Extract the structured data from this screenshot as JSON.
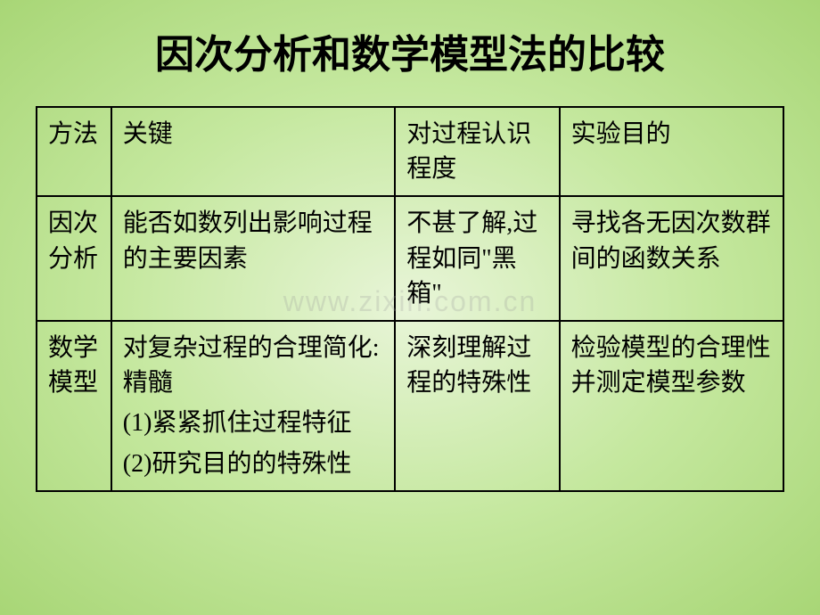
{
  "title": "因次分析和数学模型法的比较",
  "watermark": "www.zixin.com.cn",
  "table": {
    "header": {
      "method": "方法",
      "key": "关键",
      "understanding": "对过程认识程度",
      "purpose": "实验目的"
    },
    "row1": {
      "method": "因次分析",
      "key": "能否如数列出影响过程的主要因素",
      "understanding": "不甚了解,过程如同\"黑箱\"",
      "purpose": "寻找各无因次数群间的函数关系"
    },
    "row2": {
      "method": "数学模型",
      "key_main": "对复杂过程的合理简化:精髓",
      "key_sub1": "(1)紧紧抓住过程特征",
      "key_sub2": "(2)研究目的的特殊性",
      "understanding": "深刻理解过程的特殊性",
      "purpose": "检验模型的合理性并测定模型参数"
    }
  },
  "styling": {
    "background_gradient_center": "#e8f5d8",
    "background_gradient_mid": "#c5e89f",
    "background_gradient_edge": "#a8d676",
    "title_fontsize": 44,
    "title_color": "#000000",
    "cell_fontsize": 28,
    "cell_color": "#000000",
    "border_color": "#000000",
    "border_width": 2,
    "watermark_color": "rgba(150, 150, 150, 0.25)",
    "col_widths": {
      "method": "10%",
      "key": "38%",
      "understanding": "22%",
      "purpose": "30%"
    }
  }
}
